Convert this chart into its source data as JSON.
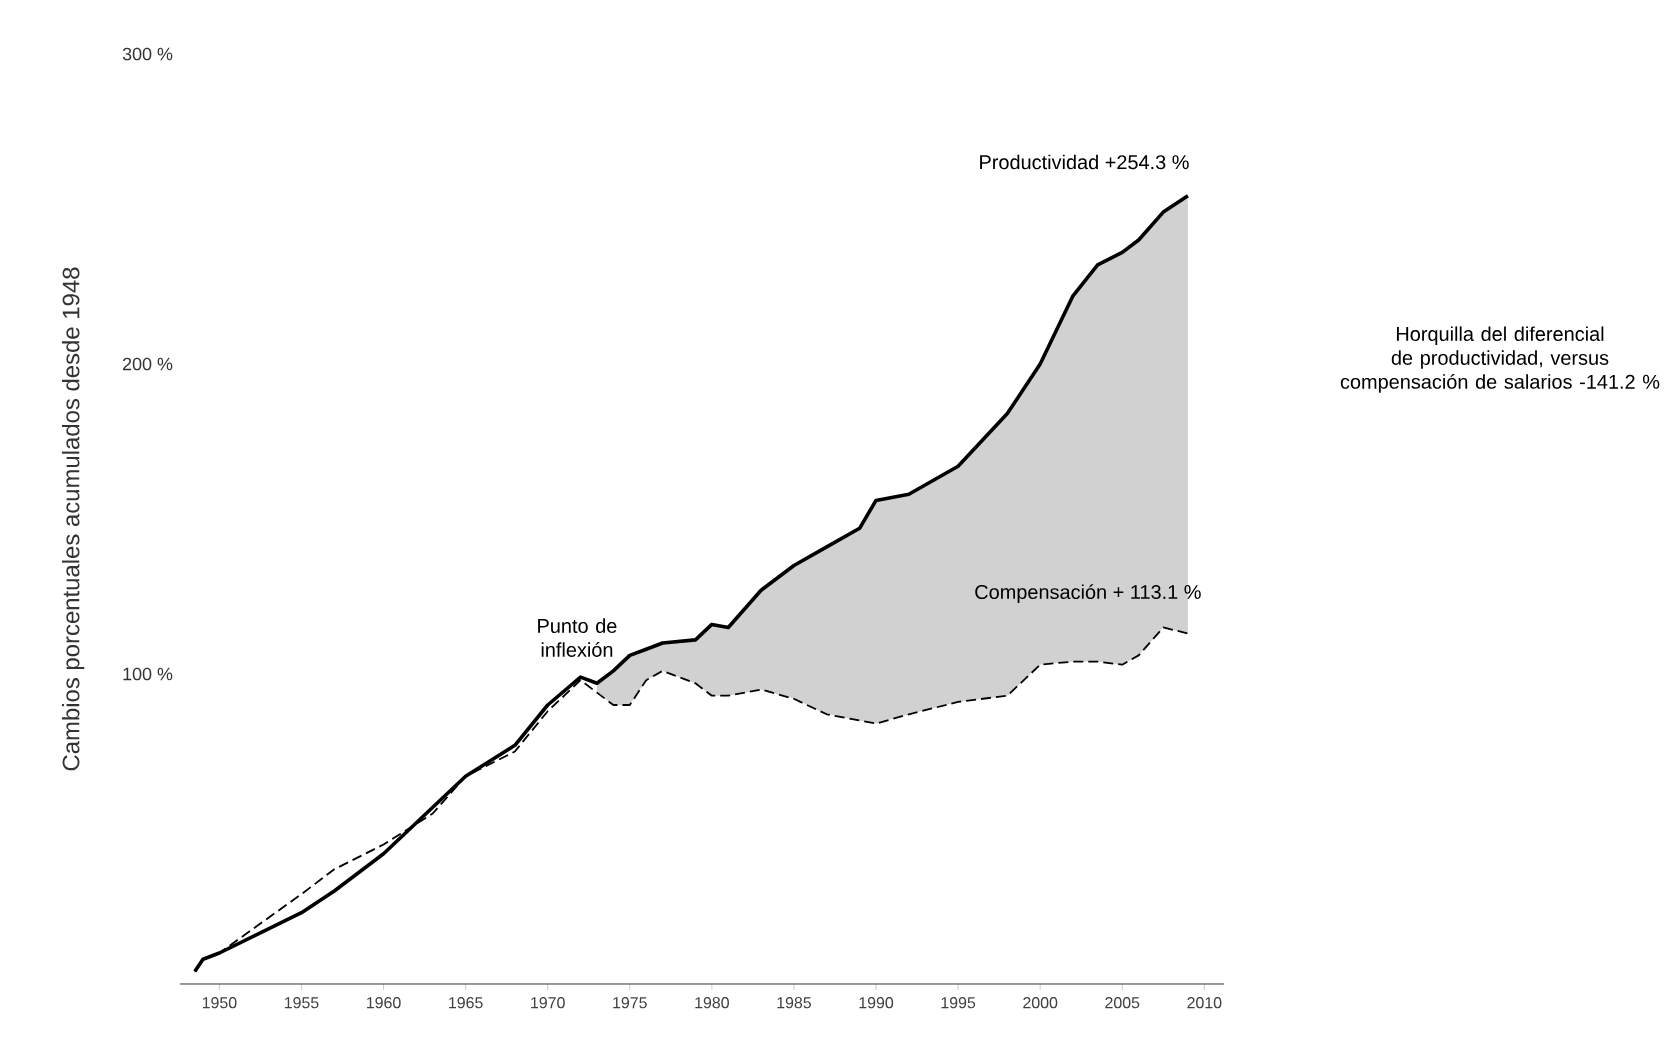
{
  "chart_data": {
    "type": "line",
    "ylabel": "Cambios porcentuales acumulados desde 1948",
    "xlim": [
      1947.6,
      2011.2
    ],
    "ylim": [
      0,
      300
    ],
    "xticks": [
      1950,
      1955,
      1960,
      1965,
      1970,
      1975,
      1980,
      1985,
      1990,
      1995,
      2000,
      2005,
      2010
    ],
    "yticks": [
      {
        "value": 100,
        "label": "100 %"
      },
      {
        "value": 200,
        "label": "200 %"
      },
      {
        "value": 300,
        "label": "300 %"
      }
    ],
    "x": [
      1948.5,
      1949,
      1950,
      1955,
      1957,
      1960,
      1963,
      1965,
      1968,
      1970,
      1972,
      1973,
      1974,
      1975,
      1976,
      1977,
      1979,
      1980,
      1981,
      1983,
      1985,
      1987,
      1989,
      1990,
      1992,
      1995,
      1998,
      2000,
      2002,
      2003.5,
      2005,
      2006,
      2007.5,
      2009
    ],
    "grid": false,
    "marker": "none",
    "series": [
      {
        "name": "Productividad +254.3 %",
        "color": "#000000",
        "line_style": "solid",
        "values": [
          4,
          8,
          10,
          23,
          30,
          42,
          57,
          67,
          77,
          90,
          99,
          97,
          101,
          106,
          108,
          110,
          111,
          116,
          115,
          127,
          135,
          141,
          147,
          156,
          158,
          167,
          184,
          200,
          222,
          232,
          236,
          240,
          249,
          254.3
        ],
        "lower": [
          null,
          null,
          null,
          null,
          null,
          null,
          null,
          null,
          null,
          null,
          null,
          94,
          90,
          90,
          98,
          101,
          97,
          93,
          93,
          95,
          92,
          87,
          85,
          84,
          87,
          91,
          93,
          103,
          104,
          104,
          103,
          106,
          115,
          113.1
        ],
        "upper": [
          null,
          null,
          null,
          null,
          null,
          null,
          null,
          null,
          null,
          null,
          null,
          97,
          101,
          106,
          108,
          110,
          111,
          116,
          115,
          127,
          135,
          141,
          147,
          156,
          158,
          167,
          184,
          200,
          222,
          232,
          236,
          240,
          249,
          254.3
        ]
      },
      {
        "name": "Compensación + 113.1 %",
        "color": "#000000",
        "line_style": "dashed",
        "values": [
          4,
          8,
          10,
          29,
          37,
          45,
          55,
          67,
          75,
          88,
          98,
          94,
          90,
          90,
          98,
          101,
          97,
          93,
          93,
          95,
          92,
          87,
          85,
          84,
          87,
          91,
          93,
          103,
          104,
          104,
          103,
          106,
          115,
          113.1
        ]
      }
    ],
    "annotations": [
      {
        "text": "Punto de inflexión",
        "x": 1973,
        "y": 97
      },
      "Horquilla del diferencial de productividad, versus compensación de salarios -141.2 %"
    ]
  }
}
